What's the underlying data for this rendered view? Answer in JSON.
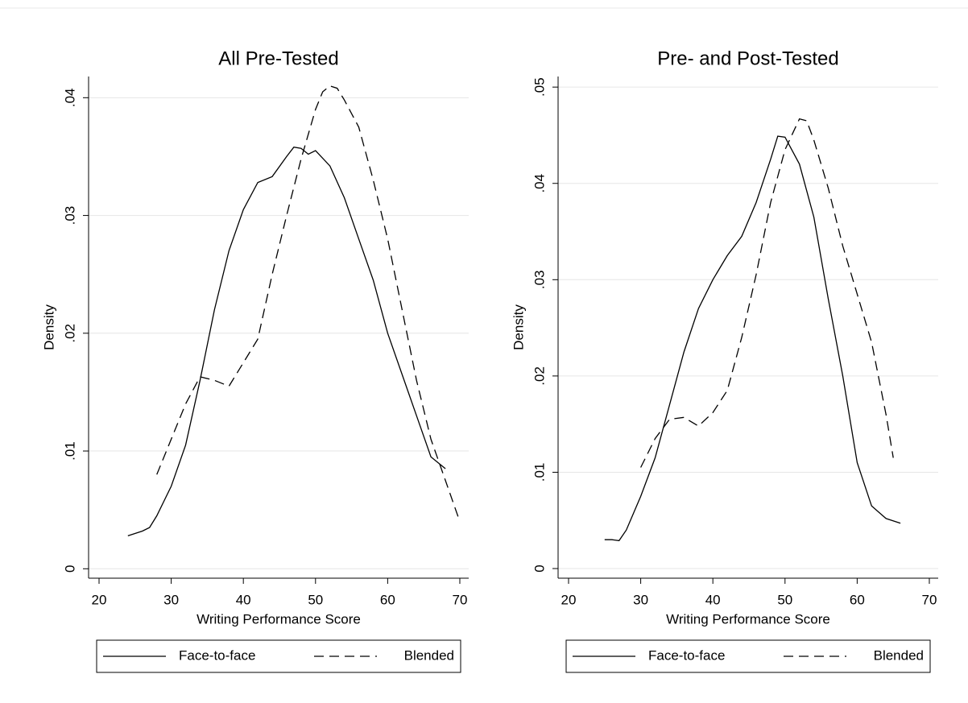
{
  "chart_data": [
    {
      "type": "line",
      "title": "All Pre-Tested",
      "xlabel": "Writing Performance Score",
      "ylabel": "Density",
      "xlim": [
        18.55,
        71.23
      ],
      "ylim": [
        -0.0008,
        0.0418
      ],
      "xticks": [
        20,
        30,
        40,
        50,
        60,
        70
      ],
      "yticks": [
        0,
        {
          "value": 0.01,
          "label": ".01"
        },
        {
          "value": 0.02,
          "label": ".02"
        },
        {
          "value": 0.03,
          "label": ".03"
        },
        {
          "value": 0.04,
          "label": ".04"
        }
      ],
      "grid": true,
      "series": [
        {
          "name": "Face-to-face",
          "color": "#000000",
          "line_style": "solid",
          "x": [
            24,
            26,
            27,
            28,
            30,
            32,
            34,
            36,
            38,
            40,
            42,
            44,
            46,
            47,
            48,
            49,
            50,
            52,
            54,
            56,
            58,
            60,
            62,
            64,
            66,
            68
          ],
          "values": [
            0.0028,
            0.0032,
            0.0035,
            0.0045,
            0.007,
            0.0105,
            0.016,
            0.022,
            0.027,
            0.0305,
            0.0328,
            0.0333,
            0.035,
            0.0358,
            0.0357,
            0.0352,
            0.0355,
            0.0342,
            0.0315,
            0.028,
            0.0245,
            0.02,
            0.0165,
            0.013,
            0.0095,
            0.0085
          ]
        },
        {
          "name": "Blended",
          "color": "#000000",
          "line_style": "dashed",
          "x": [
            28,
            30,
            32,
            34,
            36,
            38,
            40,
            42,
            44,
            46,
            48,
            50,
            51,
            52,
            53,
            54,
            56,
            58,
            60,
            62,
            64,
            66,
            68,
            70
          ],
          "values": [
            0.008,
            0.011,
            0.014,
            0.0163,
            0.016,
            0.0155,
            0.0175,
            0.0195,
            0.025,
            0.03,
            0.0348,
            0.039,
            0.0405,
            0.041,
            0.0408,
            0.0398,
            0.0375,
            0.033,
            0.028,
            0.022,
            0.016,
            0.011,
            0.0075,
            0.004
          ]
        }
      ]
    },
    {
      "type": "line",
      "title": "Pre- and Post-Tested",
      "xlabel": "Writing Performance Score",
      "ylabel": "Density",
      "xlim": [
        18.55,
        71.23
      ],
      "ylim": [
        -0.001,
        0.0511
      ],
      "xticks": [
        20,
        30,
        40,
        50,
        60,
        70
      ],
      "yticks": [
        0,
        {
          "value": 0.01,
          "label": ".01"
        },
        {
          "value": 0.02,
          "label": ".02"
        },
        {
          "value": 0.03,
          "label": ".03"
        },
        {
          "value": 0.04,
          "label": ".04"
        },
        {
          "value": 0.05,
          "label": ".05"
        }
      ],
      "grid": true,
      "series": [
        {
          "name": "Face-to-face",
          "color": "#000000",
          "line_style": "solid",
          "x": [
            25,
            26,
            27,
            28,
            30,
            32,
            34,
            36,
            38,
            40,
            42,
            44,
            46,
            48,
            49,
            50,
            52,
            54,
            56,
            58,
            60,
            62,
            64,
            66
          ],
          "values": [
            0.003,
            0.003,
            0.0029,
            0.004,
            0.0075,
            0.0115,
            0.017,
            0.0225,
            0.027,
            0.03,
            0.0325,
            0.0345,
            0.038,
            0.0425,
            0.0449,
            0.0448,
            0.042,
            0.0365,
            0.028,
            0.02,
            0.011,
            0.0065,
            0.0052,
            0.0047
          ]
        },
        {
          "name": "Blended",
          "color": "#000000",
          "line_style": "dashed",
          "x": [
            30,
            32,
            34,
            36,
            38,
            40,
            42,
            44,
            46,
            48,
            50,
            52,
            53,
            54,
            56,
            58,
            60,
            62,
            64,
            65
          ],
          "values": [
            0.0105,
            0.0135,
            0.0155,
            0.0157,
            0.0148,
            0.0162,
            0.0185,
            0.024,
            0.0305,
            0.038,
            0.0435,
            0.0467,
            0.0465,
            0.0445,
            0.0395,
            0.0335,
            0.0285,
            0.0235,
            0.016,
            0.0115
          ]
        }
      ]
    }
  ]
}
